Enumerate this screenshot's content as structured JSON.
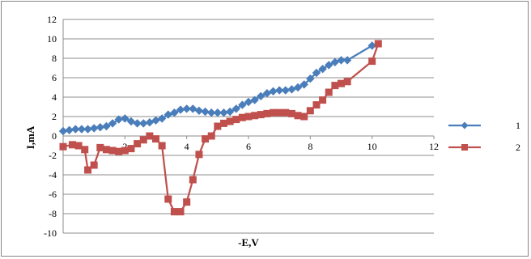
{
  "chart_data": {
    "type": "line",
    "title": "",
    "xlabel": "-E,V",
    "ylabel": "I,mA",
    "xlim": [
      0,
      12
    ],
    "ylim": [
      -10,
      12
    ],
    "x_ticks": [
      "0",
      "2",
      "4",
      "6",
      "8",
      "10",
      "12"
    ],
    "y_ticks": [
      "12",
      "10",
      "8",
      "6",
      "4",
      "2",
      "0",
      "-2",
      "-4",
      "-6",
      "-8",
      "-10"
    ],
    "grid": true,
    "legend_position": "right",
    "series": [
      {
        "name": "1",
        "color": "#4a7ebb",
        "marker": "diamond",
        "points": [
          [
            0.0,
            0.5
          ],
          [
            0.2,
            0.6
          ],
          [
            0.4,
            0.7
          ],
          [
            0.6,
            0.7
          ],
          [
            0.8,
            0.7
          ],
          [
            1.0,
            0.8
          ],
          [
            1.2,
            0.9
          ],
          [
            1.4,
            1.0
          ],
          [
            1.6,
            1.3
          ],
          [
            1.8,
            1.7
          ],
          [
            2.0,
            1.8
          ],
          [
            2.2,
            1.5
          ],
          [
            2.4,
            1.3
          ],
          [
            2.6,
            1.3
          ],
          [
            2.8,
            1.4
          ],
          [
            3.0,
            1.6
          ],
          [
            3.2,
            1.8
          ],
          [
            3.4,
            2.2
          ],
          [
            3.6,
            2.4
          ],
          [
            3.8,
            2.7
          ],
          [
            4.0,
            2.8
          ],
          [
            4.2,
            2.8
          ],
          [
            4.4,
            2.6
          ],
          [
            4.6,
            2.5
          ],
          [
            4.8,
            2.4
          ],
          [
            5.0,
            2.4
          ],
          [
            5.2,
            2.4
          ],
          [
            5.4,
            2.5
          ],
          [
            5.6,
            2.8
          ],
          [
            5.8,
            3.2
          ],
          [
            6.0,
            3.5
          ],
          [
            6.2,
            3.7
          ],
          [
            6.4,
            4.1
          ],
          [
            6.6,
            4.4
          ],
          [
            6.8,
            4.6
          ],
          [
            7.0,
            4.7
          ],
          [
            7.2,
            4.7
          ],
          [
            7.4,
            4.8
          ],
          [
            7.6,
            5.0
          ],
          [
            7.8,
            5.3
          ],
          [
            8.0,
            5.9
          ],
          [
            8.2,
            6.5
          ],
          [
            8.4,
            6.9
          ],
          [
            8.6,
            7.3
          ],
          [
            8.8,
            7.6
          ],
          [
            9.0,
            7.8
          ],
          [
            9.2,
            7.8
          ],
          [
            10.0,
            9.3
          ]
        ]
      },
      {
        "name": "2",
        "color": "#c0504d",
        "marker": "square",
        "points": [
          [
            0.0,
            -1.1
          ],
          [
            0.3,
            -0.9
          ],
          [
            0.5,
            -1.0
          ],
          [
            0.7,
            -1.4
          ],
          [
            0.8,
            -3.5
          ],
          [
            1.0,
            -3.0
          ],
          [
            1.2,
            -1.2
          ],
          [
            1.4,
            -1.4
          ],
          [
            1.6,
            -1.5
          ],
          [
            1.8,
            -1.6
          ],
          [
            2.0,
            -1.5
          ],
          [
            2.2,
            -1.3
          ],
          [
            2.4,
            -0.8
          ],
          [
            2.6,
            -0.4
          ],
          [
            2.8,
            0.0
          ],
          [
            3.0,
            -0.3
          ],
          [
            3.2,
            -1.0
          ],
          [
            3.4,
            -6.5
          ],
          [
            3.6,
            -7.8
          ],
          [
            3.8,
            -7.8
          ],
          [
            4.0,
            -6.8
          ],
          [
            4.2,
            -4.5
          ],
          [
            4.4,
            -1.9
          ],
          [
            4.6,
            -0.3
          ],
          [
            4.8,
            0.0
          ],
          [
            5.0,
            1.0
          ],
          [
            5.2,
            1.3
          ],
          [
            5.4,
            1.5
          ],
          [
            5.6,
            1.7
          ],
          [
            5.8,
            1.9
          ],
          [
            6.0,
            2.0
          ],
          [
            6.2,
            2.1
          ],
          [
            6.4,
            2.2
          ],
          [
            6.6,
            2.3
          ],
          [
            6.8,
            2.4
          ],
          [
            7.0,
            2.4
          ],
          [
            7.2,
            2.4
          ],
          [
            7.4,
            2.3
          ],
          [
            7.6,
            2.1
          ],
          [
            7.8,
            2.0
          ],
          [
            8.0,
            2.6
          ],
          [
            8.2,
            3.2
          ],
          [
            8.4,
            3.7
          ],
          [
            8.6,
            4.5
          ],
          [
            8.8,
            5.2
          ],
          [
            9.0,
            5.4
          ],
          [
            9.2,
            5.6
          ],
          [
            10.0,
            7.7
          ],
          [
            10.2,
            9.5
          ]
        ]
      }
    ]
  }
}
